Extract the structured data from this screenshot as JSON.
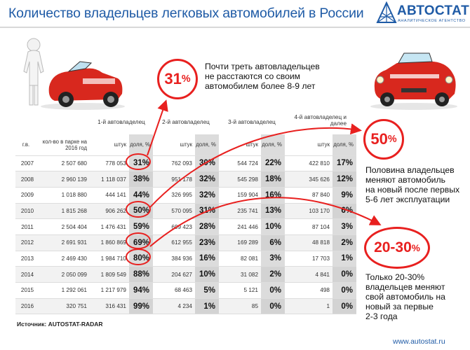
{
  "header": {
    "title": "Количество владельцев легковых автомобилей в России"
  },
  "brand": {
    "name": "АВТОСТАТ",
    "subtitle": "АНАЛИТИЧЕСКОЕ АГЕНТСТВО",
    "website": "www.autostat.ru",
    "brand_color": "#1f5ba6",
    "accent_color": "#e8201f"
  },
  "callouts": [
    {
      "badge_value": "31",
      "badge_unit": "%",
      "lines": [
        "Почти треть автовладельцев",
        "не расстаются со своим",
        "автомобилем более 8-9 лет"
      ]
    },
    {
      "badge_value": "50",
      "badge_unit": "%",
      "lines": [
        "Половина владельцев",
        "меняют автомобиль",
        "на новый после первых",
        "5-6 лет эксплуатации"
      ]
    },
    {
      "badge_value": "20-30",
      "badge_unit": "%",
      "lines": [
        "Только 20-30%",
        "владельцев меняют",
        "свой автомобиль на",
        "новый за первые",
        "2-3 года"
      ]
    }
  ],
  "table": {
    "groups": [
      "1-й автовладелец",
      "2-й автовладелец",
      "3-й автовладелец",
      "4-й автовладелец и далее"
    ],
    "columns": {
      "year": "г.в.",
      "fleet": "кол-во в парке на 2016 год",
      "count": "штук",
      "share": "доля, %"
    },
    "rows": [
      {
        "year": "2007",
        "fleet": "2 507 680",
        "o1": "778 053",
        "s1": "31%",
        "o2": "762 093",
        "s2": "30%",
        "o3": "544 724",
        "s3": "22%",
        "o4": "422 810",
        "s4": "17%"
      },
      {
        "year": "2008",
        "fleet": "2 960 139",
        "o1": "1 118 037",
        "s1": "38%",
        "o2": "951 178",
        "s2": "32%",
        "o3": "545 298",
        "s3": "18%",
        "o4": "345 626",
        "s4": "12%"
      },
      {
        "year": "2009",
        "fleet": "1 018 880",
        "o1": "444 141",
        "s1": "44%",
        "o2": "326 995",
        "s2": "32%",
        "o3": "159 904",
        "s3": "16%",
        "o4": "87 840",
        "s4": "9%"
      },
      {
        "year": "2010",
        "fleet": "1 815 268",
        "o1": "906 262",
        "s1": "50%",
        "o2": "570 095",
        "s2": "31%",
        "o3": "235 741",
        "s3": "13%",
        "o4": "103 170",
        "s4": "6%"
      },
      {
        "year": "2011",
        "fleet": "2 504 404",
        "o1": "1 476 431",
        "s1": "59%",
        "o2": "699 423",
        "s2": "28%",
        "o3": "241 446",
        "s3": "10%",
        "o4": "87 104",
        "s4": "3%"
      },
      {
        "year": "2012",
        "fleet": "2 691 931",
        "o1": "1 860 869",
        "s1": "69%",
        "o2": "612 955",
        "s2": "23%",
        "o3": "169 289",
        "s3": "6%",
        "o4": "48 818",
        "s4": "2%"
      },
      {
        "year": "2013",
        "fleet": "2 469 430",
        "o1": "1 984 710",
        "s1": "80%",
        "o2": "384 936",
        "s2": "16%",
        "o3": "82 081",
        "s3": "3%",
        "o4": "17 703",
        "s4": "1%"
      },
      {
        "year": "2014",
        "fleet": "2 050 099",
        "o1": "1 809 549",
        "s1": "88%",
        "o2": "204 627",
        "s2": "10%",
        "o3": "31 082",
        "s3": "2%",
        "o4": "4 841",
        "s4": "0%"
      },
      {
        "year": "2015",
        "fleet": "1 292 061",
        "o1": "1 217 979",
        "s1": "94%",
        "o2": "68 463",
        "s2": "5%",
        "o3": "5 121",
        "s3": "0%",
        "o4": "498",
        "s4": "0%"
      },
      {
        "year": "2016",
        "fleet": "320 751",
        "o1": "316 431",
        "s1": "99%",
        "o2": "4 234",
        "s2": "1%",
        "o3": "85",
        "s3": "0%",
        "o4": "1",
        "s4": "0%"
      }
    ]
  },
  "source": "Источник: AUTOSTAT-RADAR",
  "icons": [
    "autostat-logo-icon",
    "man-with-car-illustration",
    "red-convertible-illustration",
    "arrow-icon"
  ]
}
